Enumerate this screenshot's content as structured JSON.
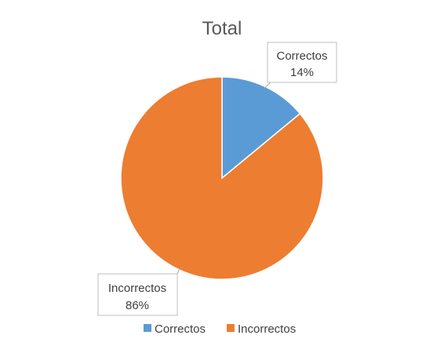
{
  "chart_data": {
    "type": "pie",
    "title": "Total",
    "slices": [
      {
        "label": "Correctos",
        "value": 14,
        "value_label": "14%",
        "color": "#5b9bd5"
      },
      {
        "label": "Incorrectos",
        "value": 86,
        "value_label": "86%",
        "color": "#ed7d31"
      }
    ],
    "legend": {
      "position": "bottom",
      "items": [
        "Correctos",
        "Incorrectos"
      ]
    }
  }
}
